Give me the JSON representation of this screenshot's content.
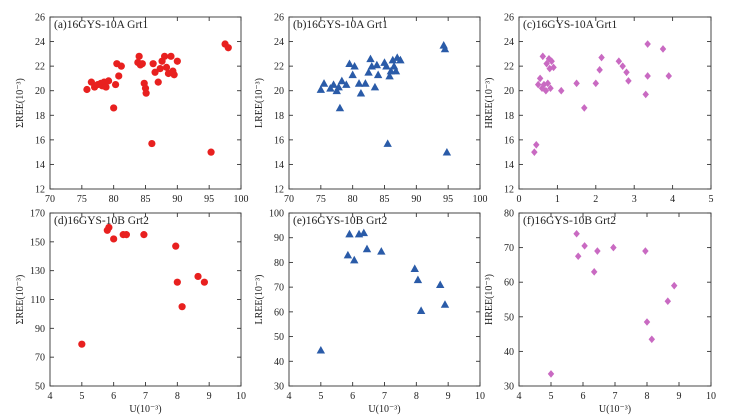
{
  "chart_data": [
    {
      "type": "scatter",
      "title": "(a)16GYS-10A Grt1",
      "xlabel": "",
      "ylabel": "ΣREE(10⁻³)",
      "xlim": [
        70,
        100
      ],
      "ylim": [
        12,
        26
      ],
      "xticks": [
        70,
        75,
        80,
        85,
        90,
        95,
        100
      ],
      "yticks": [
        12,
        14,
        16,
        18,
        20,
        22,
        24,
        26
      ],
      "marker": "circle",
      "color": "#e8201f",
      "points": [
        [
          75.8,
          20.1
        ],
        [
          76.5,
          20.7
        ],
        [
          77,
          20.3
        ],
        [
          77.5,
          20.5
        ],
        [
          78,
          20.6
        ],
        [
          78.2,
          20.4
        ],
        [
          78.5,
          20.7
        ],
        [
          78.8,
          20.3
        ],
        [
          79.2,
          20.8
        ],
        [
          80,
          18.6
        ],
        [
          80.3,
          20.5
        ],
        [
          80.5,
          22.2
        ],
        [
          80.8,
          21.2
        ],
        [
          81.2,
          22
        ],
        [
          83.8,
          22.3
        ],
        [
          84,
          22.8
        ],
        [
          84.2,
          22.1
        ],
        [
          84.5,
          22.2
        ],
        [
          84.8,
          20.6
        ],
        [
          85,
          20.2
        ],
        [
          85.1,
          19.8
        ],
        [
          86,
          15.7
        ],
        [
          86.2,
          22.2
        ],
        [
          86.5,
          21.5
        ],
        [
          87,
          20.7
        ],
        [
          87.3,
          21.8
        ],
        [
          87.6,
          22.4
        ],
        [
          88,
          22.8
        ],
        [
          88.3,
          21.9
        ],
        [
          88.6,
          21.4
        ],
        [
          89,
          22.8
        ],
        [
          89.3,
          21.6
        ],
        [
          89.5,
          21.3
        ],
        [
          90,
          22.4
        ],
        [
          95.3,
          15
        ],
        [
          97.5,
          23.8
        ],
        [
          98,
          23.5
        ]
      ]
    },
    {
      "type": "scatter",
      "title": "(b)16GYS-10A Grt1",
      "xlabel": "",
      "ylabel": "LREE(10⁻³)",
      "xlim": [
        70,
        100
      ],
      "ylim": [
        12,
        26
      ],
      "xticks": [
        70,
        75,
        80,
        85,
        90,
        95,
        100
      ],
      "yticks": [
        12,
        14,
        16,
        18,
        20,
        22,
        24,
        26
      ],
      "marker": "triangle",
      "color": "#2a5ba8",
      "points": [
        [
          75,
          20.1
        ],
        [
          75.5,
          20.6
        ],
        [
          76.5,
          20.2
        ],
        [
          77,
          20.5
        ],
        [
          77.5,
          20
        ],
        [
          77.8,
          20.3
        ],
        [
          78,
          18.6
        ],
        [
          78.3,
          20.8
        ],
        [
          79,
          20.5
        ],
        [
          79.5,
          22.2
        ],
        [
          80,
          21.3
        ],
        [
          80.3,
          22
        ],
        [
          81,
          20.6
        ],
        [
          81.3,
          19.8
        ],
        [
          82,
          20.6
        ],
        [
          82.5,
          21.5
        ],
        [
          82.8,
          22.6
        ],
        [
          83,
          22
        ],
        [
          83.5,
          20.3
        ],
        [
          83.8,
          22.1
        ],
        [
          84,
          21.3
        ],
        [
          85,
          22.3
        ],
        [
          85.3,
          22
        ],
        [
          85.5,
          15.7
        ],
        [
          85.8,
          21.2
        ],
        [
          86,
          21.6
        ],
        [
          86.3,
          22.5
        ],
        [
          86.5,
          22
        ],
        [
          86.8,
          21.6
        ],
        [
          87,
          22.7
        ],
        [
          87.5,
          22.5
        ],
        [
          94.3,
          23.7
        ],
        [
          94.5,
          23.4
        ],
        [
          94.8,
          15
        ]
      ]
    },
    {
      "type": "scatter",
      "title": "(c)16GYS-10A Grt1",
      "xlabel": "",
      "ylabel": "HREE(10⁻³)",
      "xlim": [
        0,
        5
      ],
      "ylim": [
        12,
        26
      ],
      "xticks": [
        0,
        1,
        2,
        3,
        4,
        5
      ],
      "yticks": [
        12,
        14,
        16,
        18,
        20,
        22,
        24,
        26
      ],
      "marker": "diamond",
      "color": "#c96ac2",
      "points": [
        [
          0.4,
          15
        ],
        [
          0.45,
          15.6
        ],
        [
          0.5,
          20.5
        ],
        [
          0.55,
          21
        ],
        [
          0.6,
          20.2
        ],
        [
          0.62,
          22.8
        ],
        [
          0.65,
          20.5
        ],
        [
          0.7,
          20
        ],
        [
          0.72,
          22.2
        ],
        [
          0.75,
          20.6
        ],
        [
          0.78,
          22.6
        ],
        [
          0.8,
          21.8
        ],
        [
          0.82,
          20.2
        ],
        [
          0.85,
          22.4
        ],
        [
          0.9,
          21.9
        ],
        [
          1.1,
          20
        ],
        [
          1.5,
          20.6
        ],
        [
          1.7,
          18.6
        ],
        [
          2,
          20.6
        ],
        [
          2.1,
          21.7
        ],
        [
          2.15,
          22.7
        ],
        [
          2.6,
          22.4
        ],
        [
          2.7,
          22
        ],
        [
          2.8,
          21.5
        ],
        [
          2.85,
          20.8
        ],
        [
          3.3,
          19.7
        ],
        [
          3.35,
          23.8
        ],
        [
          3.35,
          21.2
        ],
        [
          3.75,
          23.4
        ],
        [
          3.9,
          21.2
        ]
      ]
    },
    {
      "type": "scatter",
      "title": "(d)16GYS-10B Grt2",
      "xlabel": "U(10⁻³)",
      "ylabel": "ΣREE(10⁻³)",
      "xlim": [
        4,
        10
      ],
      "ylim": [
        50,
        170
      ],
      "xticks": [
        4,
        5,
        6,
        7,
        8,
        9,
        10
      ],
      "yticks": [
        50,
        70,
        90,
        110,
        130,
        150,
        170
      ],
      "marker": "circle",
      "color": "#e8201f",
      "points": [
        [
          5,
          79
        ],
        [
          5.8,
          158
        ],
        [
          5.85,
          160
        ],
        [
          6,
          152
        ],
        [
          6.3,
          155
        ],
        [
          6.4,
          155
        ],
        [
          6.95,
          155
        ],
        [
          7.95,
          147
        ],
        [
          8,
          122
        ],
        [
          8.15,
          105
        ],
        [
          8.65,
          126
        ],
        [
          8.85,
          122
        ]
      ]
    },
    {
      "type": "scatter",
      "title": "(e)16GYS-10B Grt2",
      "xlabel": "U(10⁻³)",
      "ylabel": "LREE(10⁻³)",
      "xlim": [
        4,
        10
      ],
      "ylim": [
        30,
        100
      ],
      "xticks": [
        4,
        5,
        6,
        7,
        8,
        9,
        10
      ],
      "yticks": [
        30,
        40,
        50,
        60,
        70,
        80,
        90,
        100
      ],
      "marker": "triangle",
      "color": "#2a5ba8",
      "points": [
        [
          5,
          44.5
        ],
        [
          5.85,
          83
        ],
        [
          5.9,
          91.5
        ],
        [
          6.05,
          81
        ],
        [
          6.2,
          91.5
        ],
        [
          6.35,
          92
        ],
        [
          6.45,
          85.5
        ],
        [
          6.9,
          84.5
        ],
        [
          7.95,
          77.5
        ],
        [
          8.05,
          73
        ],
        [
          8.15,
          60.5
        ],
        [
          8.75,
          71
        ],
        [
          8.9,
          63
        ]
      ]
    },
    {
      "type": "scatter",
      "title": "(f)16GYS-10B Grt2",
      "xlabel": "U(10⁻³)",
      "ylabel": "HREE(10⁻³)",
      "xlim": [
        4,
        10
      ],
      "ylim": [
        30,
        80
      ],
      "xticks": [
        4,
        5,
        6,
        7,
        8,
        9,
        10
      ],
      "yticks": [
        30,
        40,
        50,
        60,
        70,
        80
      ],
      "marker": "diamond",
      "color": "#c96ac2",
      "points": [
        [
          5,
          33.5
        ],
        [
          5.8,
          74
        ],
        [
          5.85,
          67.5
        ],
        [
          6.05,
          70.5
        ],
        [
          6.35,
          63
        ],
        [
          6.45,
          69
        ],
        [
          6.95,
          70
        ],
        [
          7.95,
          69
        ],
        [
          8,
          48.5
        ],
        [
          8.15,
          43.5
        ],
        [
          8.65,
          54.5
        ],
        [
          8.85,
          59
        ]
      ]
    }
  ]
}
